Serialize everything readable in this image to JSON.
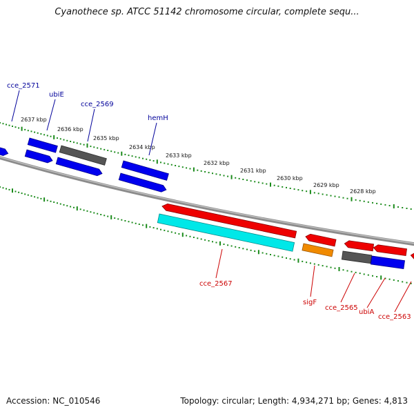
{
  "title": "Cyanothece sp. ATCC 51142 chromosome circular, complete sequ...",
  "footer": {
    "accession": "Accession: NC_010546",
    "summary": "Topology: circular; Length: 4,934,271 bp; Genes: 4,813"
  },
  "colors": {
    "backbone": "#8c8c8c",
    "ticks": "#1a8a1a",
    "blue": "#0000ee",
    "gray": "#555555",
    "red": "#ee0000",
    "cyan": "#00e8e8",
    "orange": "#f08a00",
    "top_label": "#00009a",
    "bottom_label": "#cc0000"
  },
  "scale_labels": [
    "2637 kbp",
    "2636 kbp",
    "2635 kbp",
    "2634 kbp",
    "2633 kbp",
    "2632 kbp",
    "2631 kbp",
    "2630 kbp",
    "2629 kbp",
    "2628 kbp"
  ],
  "gene_labels": {
    "top": [
      "cce_2571",
      "ubiE",
      "cce_2569",
      "hemH"
    ],
    "bottom": [
      "cce_2567",
      "sigF",
      "cce_2565",
      "ubiA",
      "cce_2563"
    ]
  }
}
